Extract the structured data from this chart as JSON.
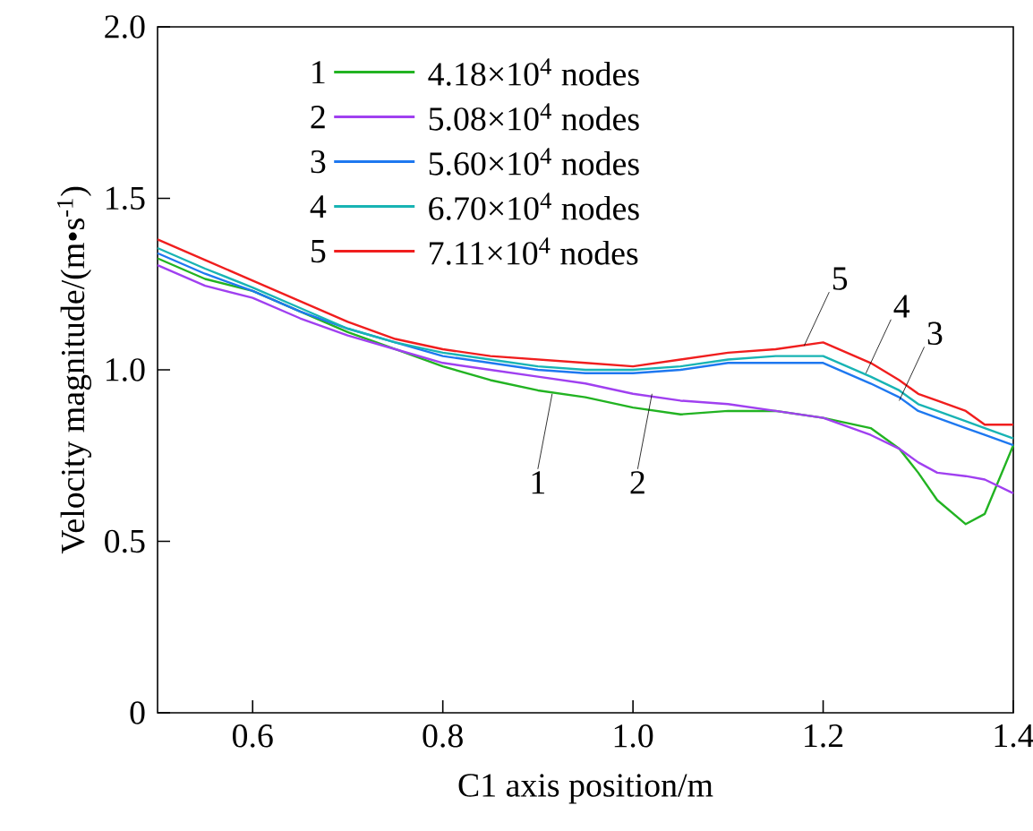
{
  "chart_data": {
    "type": "line",
    "xlabel": "C1 axis position/m",
    "ylabel": "Velocity magnitude/(m•s$^{-1}$)",
    "x": [
      0.5,
      0.55,
      0.6,
      0.65,
      0.7,
      0.75,
      0.8,
      0.85,
      0.9,
      0.95,
      1.0,
      1.05,
      1.1,
      1.15,
      1.2,
      1.25,
      1.28,
      1.3,
      1.32,
      1.35,
      1.37,
      1.4
    ],
    "xlim": [
      0.5,
      1.4
    ],
    "xticks": [
      0.6,
      0.8,
      {
        "value": 1.0,
        "label": "1.0"
      },
      1.2,
      1.4
    ],
    "ylim": [
      0,
      2.0
    ],
    "yticks": [
      0,
      0.5,
      {
        "value": 1.0,
        "label": "1.0"
      },
      1.5,
      {
        "value": 2.0,
        "label": "2.0"
      }
    ],
    "legend": "top",
    "grid": false,
    "marker": "none",
    "line_style": "solid",
    "series": [
      {
        "name": "4.18×10$^{4}$ nodes",
        "color": "#22b322",
        "values": [
          1.325,
          1.265,
          1.23,
          1.17,
          1.11,
          1.06,
          1.01,
          0.97,
          0.94,
          0.92,
          0.89,
          0.87,
          0.88,
          0.88,
          0.86,
          0.83,
          0.77,
          0.7,
          0.62,
          0.55,
          0.58,
          0.78
        ]
      },
      {
        "name": "5.08×10$^{4}$ nodes",
        "color": "#a040f0",
        "values": [
          1.305,
          1.245,
          1.21,
          1.15,
          1.1,
          1.06,
          1.02,
          1.0,
          0.98,
          0.96,
          0.93,
          0.91,
          0.9,
          0.88,
          0.86,
          0.81,
          0.77,
          0.73,
          0.7,
          0.69,
          0.68,
          0.64
        ]
      },
      {
        "name": "5.60×10$^{4}$ nodes",
        "color": "#1e78f0",
        "values": [
          1.34,
          1.28,
          1.23,
          1.17,
          1.12,
          1.08,
          1.04,
          1.02,
          1.0,
          0.99,
          0.99,
          1.0,
          1.02,
          1.02,
          1.02,
          0.96,
          0.92,
          0.88,
          0.86,
          0.83,
          0.81,
          0.78
        ]
      },
      {
        "name": "6.70×10$^{4}$ nodes",
        "color": "#18b4b4",
        "values": [
          1.355,
          1.295,
          1.24,
          1.18,
          1.12,
          1.08,
          1.05,
          1.03,
          1.01,
          1.0,
          1.0,
          1.01,
          1.03,
          1.04,
          1.04,
          0.98,
          0.94,
          0.9,
          0.88,
          0.85,
          0.83,
          0.8
        ]
      },
      {
        "name": "7.11×10$^{4}$ nodes",
        "color": "#f01e1e",
        "values": [
          1.38,
          1.32,
          1.26,
          1.2,
          1.14,
          1.09,
          1.06,
          1.04,
          1.03,
          1.02,
          1.01,
          1.03,
          1.05,
          1.06,
          1.08,
          1.02,
          0.97,
          0.93,
          0.91,
          0.88,
          0.84,
          0.84
        ]
      }
    ],
    "annotations": [
      {
        "text": "1",
        "x": 0.915,
        "y": 0.93
      },
      {
        "text": "2",
        "x": 1.02,
        "y": 0.93
      },
      {
        "text": "3",
        "x": 1.28,
        "y": 0.91
      },
      {
        "text": "4",
        "x": 1.245,
        "y": 0.99
      },
      {
        "text": "5",
        "x": 1.18,
        "y": 1.07
      }
    ]
  }
}
